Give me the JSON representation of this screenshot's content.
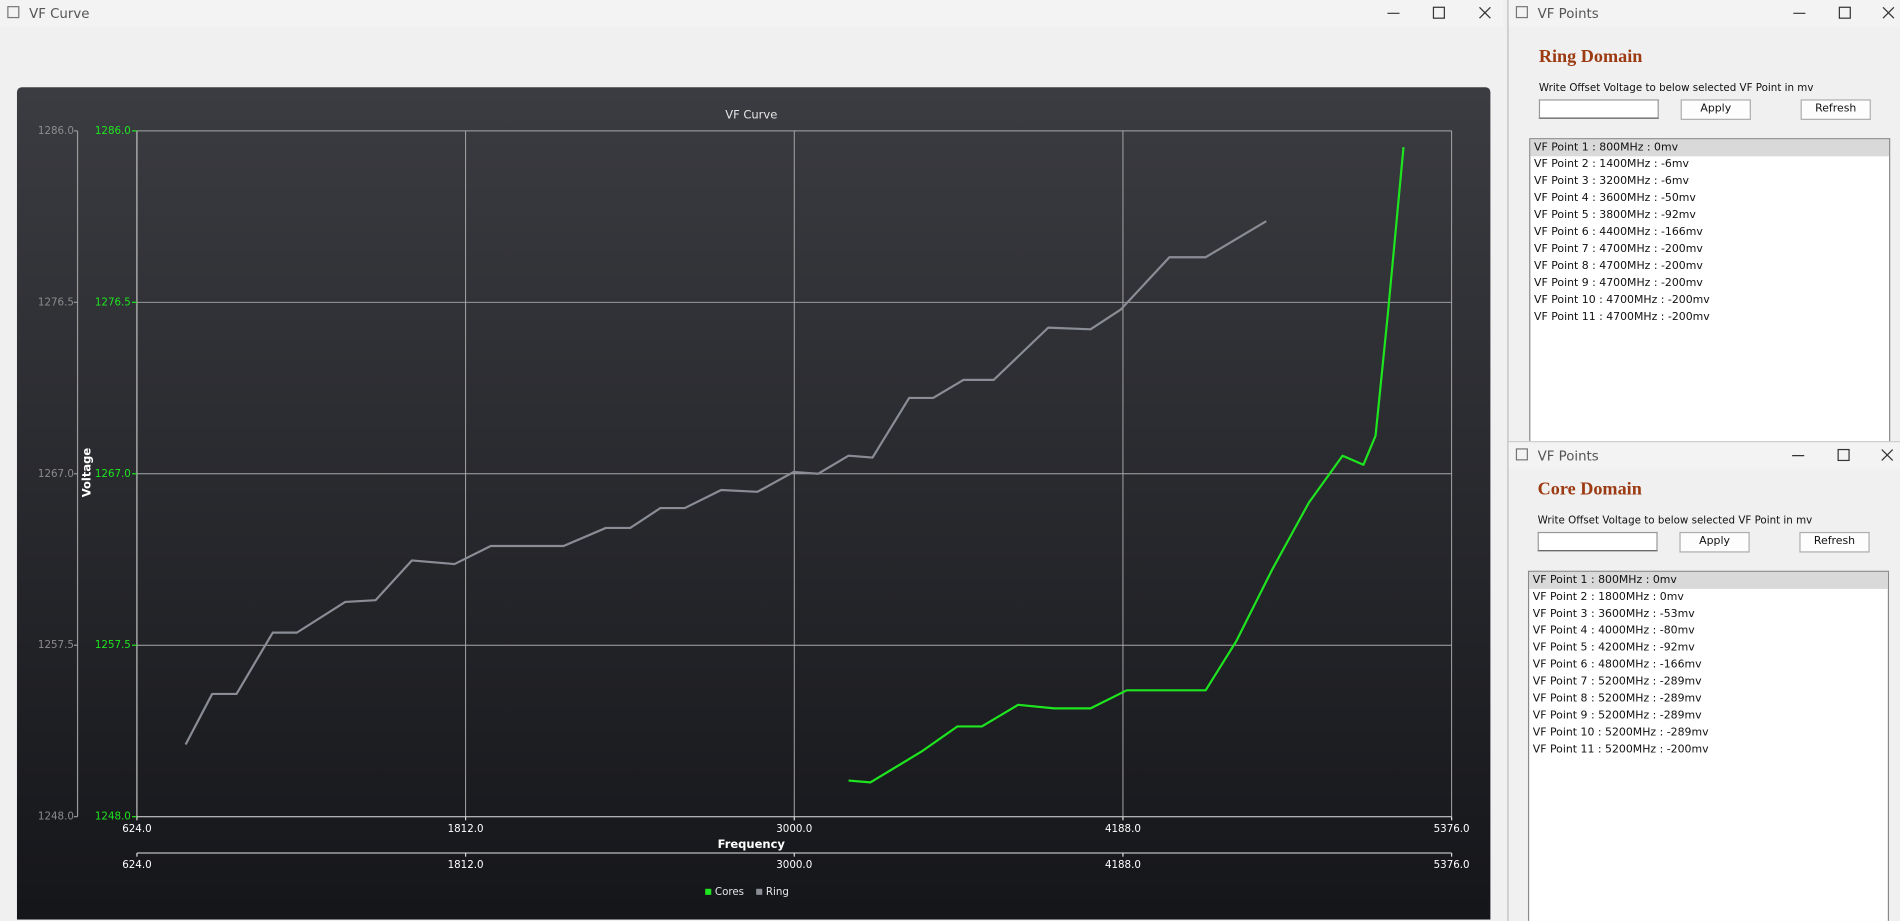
{
  "main_window": {
    "title": "VF Curve"
  },
  "chart_data": {
    "type": "line",
    "title": "VF Curve",
    "x_label": "Frequency",
    "y_label": "Voltage",
    "xlim": [
      624,
      5376
    ],
    "xticks": [
      {
        "value": 624,
        "label": "624.0"
      },
      {
        "value": 1812,
        "label": "1812.0"
      },
      {
        "value": 3000,
        "label": "3000.0"
      },
      {
        "value": 4188,
        "label": "4188.0"
      },
      {
        "value": 5376,
        "label": "5376.0"
      }
    ],
    "x2lim": [
      624,
      5376
    ],
    "x2ticks": [
      {
        "value": 624,
        "label": "624.0"
      },
      {
        "value": 1812,
        "label": "1812.0"
      },
      {
        "value": 3000,
        "label": "3000.0"
      },
      {
        "value": 4188,
        "label": "4188.0"
      },
      {
        "value": 5376,
        "label": "5376.0"
      }
    ],
    "ylim": [
      1248,
      1286
    ],
    "yticks": [
      {
        "value": 1248,
        "label": "1248.0"
      },
      {
        "value": 1257.5,
        "label": "1257.5"
      },
      {
        "value": 1267,
        "label": "1267.0"
      },
      {
        "value": 1276.5,
        "label": "1276.5"
      },
      {
        "value": 1286,
        "label": "1286.0"
      }
    ],
    "y2lim": [
      1248,
      1286
    ],
    "y2ticks": [
      {
        "value": 1248,
        "label": "1248.0"
      },
      {
        "value": 1257.5,
        "label": "1257.5"
      },
      {
        "value": 1267,
        "label": "1267.0"
      },
      {
        "value": 1276.5,
        "label": "1276.5"
      },
      {
        "value": 1286,
        "label": "1286.0"
      }
    ],
    "grid": true,
    "legend": "bottom",
    "series": [
      {
        "name": "Cores",
        "color": "#1ee61e",
        "x": [
          3196,
          3275,
          3459,
          3590,
          3678,
          3809,
          3940,
          4071,
          4202,
          4356,
          4487,
          4597,
          4728,
          4860,
          4982,
          5057,
          5101,
          5145,
          5202
        ],
        "values": [
          1250.0,
          1249.9,
          1251.6,
          1253.0,
          1253.0,
          1254.2,
          1254.0,
          1254.0,
          1255.0,
          1255.0,
          1255.0,
          1257.7,
          1261.7,
          1265.4,
          1268.0,
          1267.5,
          1269.1,
          1275.8,
          1285.1
        ]
      },
      {
        "name": "Ring",
        "color": "#8a8d95",
        "axis": "y2",
        "x": [
          800,
          896,
          984,
          1115,
          1202,
          1377,
          1487,
          1618,
          1772,
          1903,
          2166,
          2319,
          2407,
          2516,
          2604,
          2736,
          2867,
          2998,
          3086,
          3196,
          3283,
          3415,
          3502,
          3612,
          3721,
          3918,
          4071,
          4180,
          4356,
          4487,
          4706
        ],
        "values": [
          1252.0,
          1254.8,
          1254.8,
          1258.2,
          1258.2,
          1259.9,
          1260.0,
          1262.2,
          1262.0,
          1263.0,
          1263.0,
          1264.0,
          1264.0,
          1265.1,
          1265.1,
          1266.1,
          1266.0,
          1267.1,
          1267.0,
          1268.0,
          1267.9,
          1271.2,
          1271.2,
          1272.2,
          1272.2,
          1275.1,
          1275.0,
          1276.1,
          1279.0,
          1279.0,
          1281.0
        ]
      }
    ]
  },
  "ring_window": {
    "title": "VF Points",
    "heading": "Ring Domain",
    "instruction": "Write Offset Voltage to below selected VF Point in mv",
    "apply": "Apply",
    "refresh": "Refresh",
    "items": [
      "VF Point 1 : 800MHz : 0mv",
      "VF Point 2 : 1400MHz : -6mv",
      "VF Point 3 : 3200MHz : -6mv",
      "VF Point 4 : 3600MHz : -50mv",
      "VF Point 5 : 3800MHz : -92mv",
      "VF Point 6 : 4400MHz : -166mv",
      "VF Point 7 : 4700MHz : -200mv",
      "VF Point 8 : 4700MHz : -200mv",
      "VF Point 9 : 4700MHz : -200mv",
      "VF Point 10 : 4700MHz : -200mv",
      "VF Point 11 : 4700MHz : -200mv"
    ]
  },
  "core_window": {
    "title": "VF Points",
    "heading": "Core Domain",
    "instruction": "Write Offset Voltage to below selected VF Point in mv",
    "apply": "Apply",
    "refresh": "Refresh",
    "items": [
      "VF Point 1 : 800MHz : 0mv",
      "VF Point 2 : 1800MHz : 0mv",
      "VF Point 3 : 3600MHz : -53mv",
      "VF Point 4 : 4000MHz : -80mv",
      "VF Point 5 : 4200MHz : -92mv",
      "VF Point 6 : 4800MHz : -166mv",
      "VF Point 7 : 5200MHz : -289mv",
      "VF Point 8 : 5200MHz : -289mv",
      "VF Point 9 : 5200MHz : -289mv",
      "VF Point 10 : 5200MHz : -289mv",
      "VF Point 11 : 5200MHz : -200mv"
    ]
  }
}
